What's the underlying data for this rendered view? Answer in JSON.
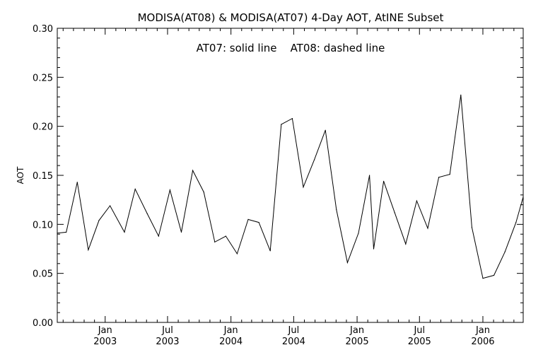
{
  "chart_data": {
    "type": "line",
    "title": "MODISA(AT08) & MODISA(AT07) 4-Day AOT, AtINE Subset",
    "annotation": "AT07: solid line    AT08: dashed line",
    "ylabel": "AOT",
    "xlabel": "",
    "ylim": [
      0.0,
      0.3
    ],
    "yticks": [
      "0.00",
      "0.05",
      "0.10",
      "0.15",
      "0.20",
      "0.25",
      "0.30"
    ],
    "xlim": [
      "2002-08-15",
      "2006-04-28"
    ],
    "xticks": [
      {
        "date": "2003-01-01",
        "month": "Jan",
        "year": "2003"
      },
      {
        "date": "2003-07-01",
        "month": "Jul",
        "year": "2003"
      },
      {
        "date": "2004-01-01",
        "month": "Jan",
        "year": "2004"
      },
      {
        "date": "2004-07-01",
        "month": "Jul",
        "year": "2004"
      },
      {
        "date": "2005-01-01",
        "month": "Jan",
        "year": "2005"
      },
      {
        "date": "2005-07-01",
        "month": "Jul",
        "year": "2005"
      },
      {
        "date": "2006-01-01",
        "month": "Jan",
        "year": "2006"
      }
    ],
    "grid": false,
    "series": [
      {
        "name": "AT07",
        "style": "solid",
        "color": "#000000",
        "points": [
          [
            "2002-08-15",
            0.091
          ],
          [
            "2002-09-10",
            0.092
          ],
          [
            "2002-10-12",
            0.143
          ],
          [
            "2002-11-13",
            0.074
          ],
          [
            "2002-12-14",
            0.104
          ],
          [
            "2003-01-15",
            0.119
          ],
          [
            "2003-02-26",
            0.092
          ],
          [
            "2003-03-29",
            0.136
          ],
          [
            "2003-05-03",
            0.111
          ],
          [
            "2003-06-05",
            0.088
          ],
          [
            "2003-07-08",
            0.135
          ],
          [
            "2003-08-10",
            0.092
          ],
          [
            "2003-09-12",
            0.155
          ],
          [
            "2003-10-14",
            0.133
          ],
          [
            "2003-11-15",
            0.082
          ],
          [
            "2003-12-17",
            0.088
          ],
          [
            "2004-01-19",
            0.07
          ],
          [
            "2004-02-20",
            0.105
          ],
          [
            "2004-03-22",
            0.102
          ],
          [
            "2004-04-24",
            0.073
          ],
          [
            "2004-05-26",
            0.202
          ],
          [
            "2004-06-27",
            0.208
          ],
          [
            "2004-07-29",
            0.138
          ],
          [
            "2004-08-30",
            0.166
          ],
          [
            "2004-10-01",
            0.196
          ],
          [
            "2004-11-02",
            0.115
          ],
          [
            "2004-12-04",
            0.061
          ],
          [
            "2005-01-05",
            0.091
          ],
          [
            "2005-02-06",
            0.15
          ],
          [
            "2005-02-18",
            0.075
          ],
          [
            "2005-03-19",
            0.144
          ],
          [
            "2005-04-20",
            0.112
          ],
          [
            "2005-05-22",
            0.08
          ],
          [
            "2005-06-23",
            0.124
          ],
          [
            "2005-07-25",
            0.096
          ],
          [
            "2005-08-26",
            0.148
          ],
          [
            "2005-09-27",
            0.151
          ],
          [
            "2005-10-29",
            0.232
          ],
          [
            "2005-11-30",
            0.097
          ],
          [
            "2006-01-01",
            0.045
          ],
          [
            "2006-02-02",
            0.048
          ],
          [
            "2006-03-06",
            0.072
          ],
          [
            "2006-04-07",
            0.102
          ],
          [
            "2006-04-28",
            0.128
          ]
        ]
      }
    ]
  }
}
